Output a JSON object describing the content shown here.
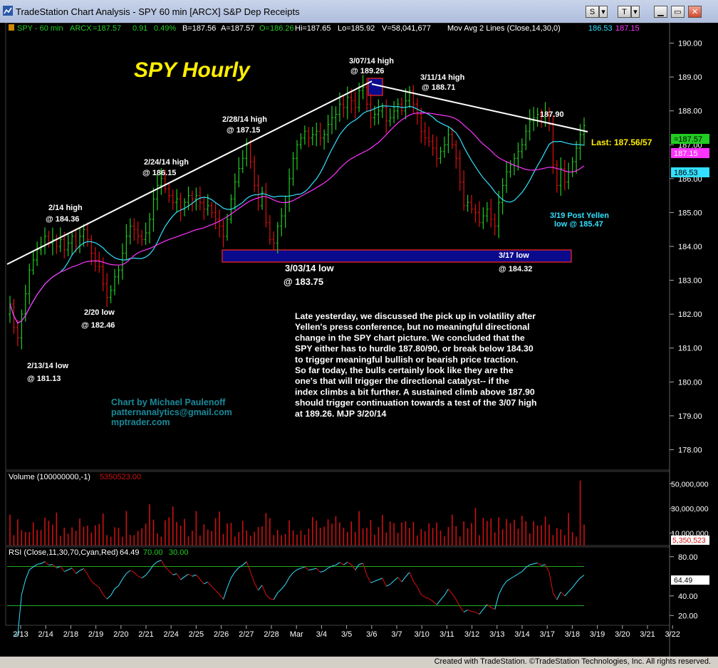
{
  "window": {
    "title": "TradeStation Chart Analysis - SPY 60 min [ARCX] S&P Dep Receipts",
    "buttons": {
      "s": "S",
      "s_dd": "▾",
      "t": "T",
      "t_dd": "▾",
      "minimize": "▁",
      "restore": "▭",
      "close": "✕"
    }
  },
  "status_bar": {
    "text": "Created with TradeStation. ©TradeStation Technologies, Inc. All rights reserved."
  },
  "header": {
    "symbol": "SPY - 60 min",
    "exchange": "ARCX",
    "last": "=187.57",
    "change": "0.91",
    "change_pct": "0.49%",
    "bid": "B=187.56",
    "ask": "A=187.57",
    "open": "O=186.26",
    "high": "Hi=187.65",
    "low": "Lo=185.92",
    "volume": "V=58,041,677",
    "mav_label": "Mov Avg 2 Lines (Close,14,30,0)",
    "mav1": "186.53",
    "mav2": "187.15"
  },
  "colors": {
    "up_bar": "#22cc22",
    "down_bar": "#dd1111",
    "mav_fast": "#33e0ff",
    "mav_slow": "#ff33ff",
    "volume": "#cc1111",
    "rsi_up": "#33e0ff",
    "rsi_down": "#dd1111",
    "trendline": "#ffffff",
    "support_box": "#0a0a8c",
    "note_text": "#ffffff",
    "credit_text": "#1a8a9a",
    "title_text": "#ffee00"
  },
  "texts": {
    "chart_title": "SPY Hourly",
    "last_label": "Last: 187.56/57",
    "credit_1": "Chart by Michael Paulenoff",
    "credit_2": "patternanalytics@gmail.com",
    "credit_3": "mptrader.com",
    "note_lines": [
      "Late yesterday, we discussed the pick up in volatility after",
      "Yellen's press conference, but no meaningful directional",
      "change in the SPY chart picture.  We concluded that the",
      "SPY either has to hurdle 187.80/90, or break below 184.30",
      "to trigger meaningful bullish or bearish price traction.",
      "So far today, the bulls certainly look like they are the",
      "one's that will trigger the directional catalyst-- if the",
      "index climbs a bit further.  A sustained climb above 187.90",
      "should trigger continuation towards a test of the 3/07 high",
      "at 189.26.  MJP  3/20/14"
    ],
    "volume_label": "Volume (100000000,-1)",
    "volume_value": "5350523.00",
    "rsi_label": "RSI (Close,11,30,70,Cyan,Red)",
    "rsi_value": "64.49",
    "rsi_ob": "70.00",
    "rsi_os": "30.00"
  },
  "annotations": [
    {
      "id": "a-0213",
      "lines": [
        "2/13/14 low",
        "@ 181.13"
      ]
    },
    {
      "id": "a-0214",
      "lines": [
        "2/14 high",
        "@ 184.36"
      ]
    },
    {
      "id": "a-0220",
      "lines": [
        "2/20 low",
        "@ 182.46"
      ]
    },
    {
      "id": "a-0224",
      "lines": [
        "2/24/14 high",
        "@ 186.15"
      ]
    },
    {
      "id": "a-0228",
      "lines": [
        "2/28/14 high",
        "@ 187.15"
      ]
    },
    {
      "id": "a-0303",
      "lines": [
        "3/03/14 low",
        "@ 183.75"
      ]
    },
    {
      "id": "a-0307",
      "lines": [
        "3/07/14 high",
        "@ 189.26"
      ]
    },
    {
      "id": "a-0311",
      "lines": [
        "3/11/14 high",
        "@ 188.71"
      ]
    },
    {
      "id": "a-0317",
      "lines": [
        "3/17 low",
        "@ 184.32"
      ]
    },
    {
      "id": "a-0318",
      "lines": [
        "187.90"
      ]
    },
    {
      "id": "a-0319",
      "lines": [
        "3/19 Post Yellen",
        "low @ 185.47"
      ]
    }
  ],
  "chart_data": [
    {
      "type": "ohlc",
      "title": "SPY Hourly",
      "ylim": [
        177.4,
        190.6
      ],
      "y_ticks": [
        "190.00",
        "189.00",
        "188.00",
        "187.00",
        "186.00",
        "185.00",
        "184.00",
        "183.00",
        "182.00",
        "181.00",
        "180.00",
        "179.00",
        "178.00"
      ],
      "y_tick_values": [
        190,
        189,
        188,
        187,
        186,
        185,
        184,
        183,
        182,
        181,
        180,
        179,
        178
      ],
      "x_ticks": [
        "2/13",
        "2/14",
        "2/18",
        "2/19",
        "2/20",
        "2/21",
        "2/24",
        "2/25",
        "2/26",
        "2/27",
        "2/28",
        "Mar",
        "3/4",
        "3/5",
        "3/6",
        "3/7",
        "3/10",
        "3/11",
        "3/12",
        "3/13",
        "3/14",
        "3/17",
        "3/18",
        "3/19",
        "3/20",
        "3/21",
        "3/22"
      ],
      "session_closes": [
        [
          182.3,
          181.6,
          181.3,
          182.0,
          182.6,
          183.3
        ],
        [
          183.6,
          183.9,
          184.0,
          184.3,
          184.1,
          184.2
        ],
        [
          184.0,
          184.2,
          183.9,
          184.1,
          184.3,
          184.0
        ],
        [
          184.3,
          184.5,
          184.2,
          183.8,
          183.6,
          183.4
        ],
        [
          182.9,
          182.5,
          182.7,
          183.1,
          183.3,
          183.8
        ],
        [
          184.3,
          184.6,
          184.5,
          184.3,
          184.2,
          184.4
        ],
        [
          184.8,
          185.4,
          185.8,
          186.0,
          185.7,
          185.5
        ],
        [
          185.3,
          185.4,
          185.1,
          185.3,
          185.5,
          185.4
        ],
        [
          185.5,
          185.3,
          185.1,
          185.2,
          185.0,
          184.8
        ],
        [
          184.6,
          184.3,
          184.8,
          185.4,
          185.9,
          186.3
        ],
        [
          186.6,
          187.0,
          186.5,
          185.8,
          185.2,
          185.6
        ],
        [
          184.7,
          184.2,
          184.1,
          184.6,
          184.9,
          185.3
        ],
        [
          186.0,
          186.6,
          187.0,
          187.2,
          187.4,
          187.2
        ],
        [
          187.3,
          187.4,
          187.2,
          187.3,
          187.6,
          187.8
        ],
        [
          187.9,
          188.2,
          188.1,
          188.4,
          188.3,
          188.1
        ],
        [
          188.6,
          188.7,
          188.2,
          187.8,
          187.9,
          188.0
        ],
        [
          188.1,
          187.7,
          187.8,
          188.0,
          188.2,
          188.0
        ],
        [
          188.3,
          188.6,
          188.2,
          187.9,
          187.4,
          187.2
        ],
        [
          187.1,
          186.9,
          186.6,
          186.8,
          187.0,
          187.3
        ],
        [
          187.0,
          186.6,
          185.9,
          185.2,
          185.3,
          185.1
        ],
        [
          185.0,
          184.7,
          184.9,
          185.1,
          184.8,
          184.6
        ],
        [
          185.3,
          185.8,
          186.2,
          186.4,
          186.6,
          186.8
        ],
        [
          187.0,
          187.4,
          187.7,
          187.8,
          187.9,
          187.8
        ],
        [
          187.9,
          187.6,
          186.4,
          185.8,
          186.3,
          185.9
        ],
        [
          186.2,
          186.5,
          186.9,
          187.3,
          187.57
        ]
      ],
      "mav_lengths": [
        14,
        30
      ]
    },
    {
      "type": "bar",
      "title": "Volume (100000000,-1)",
      "ylim": [
        0,
        60000000
      ],
      "y_ticks": [
        "50,000,000",
        "30,000,000",
        "10,000,000"
      ],
      "y_tick_values": [
        50000000,
        30000000,
        10000000
      ],
      "last_value": "5,350,523"
    },
    {
      "type": "line",
      "title": "RSI (Close,11,30,70,Cyan,Red)",
      "ylim": [
        10,
        90
      ],
      "y_ticks": [
        "80.00",
        "40.00",
        "20.00"
      ],
      "y_tick_values": [
        80,
        40,
        20
      ],
      "overbought": 70,
      "oversold": 30,
      "last_value": "64.49"
    }
  ]
}
